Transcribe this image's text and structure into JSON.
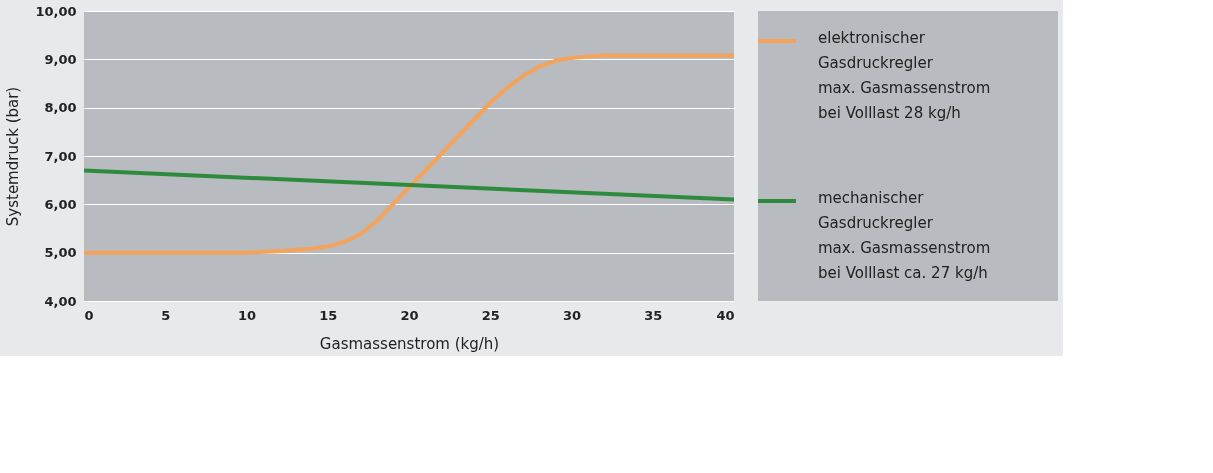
{
  "chart_data": {
    "type": "line",
    "xlabel": "Gasmassenstrom (kg/h)",
    "ylabel": "Systemdruck (bar)",
    "xlim": [
      0,
      40
    ],
    "xticks": [
      0,
      5,
      10,
      15,
      20,
      25,
      30,
      35,
      40
    ],
    "ylim": [
      4,
      10
    ],
    "yticks": [
      {
        "value": 4,
        "label": "4,00"
      },
      {
        "value": 5,
        "label": "5,00"
      },
      {
        "value": 6,
        "label": "6,00"
      },
      {
        "value": 7,
        "label": "7,00"
      },
      {
        "value": 8,
        "label": "8,00"
      },
      {
        "value": 9,
        "label": "9,00"
      },
      {
        "value": 10,
        "label": "10,00"
      }
    ],
    "grid": "y",
    "legend": "right",
    "line_style": "solid",
    "marker": "none",
    "series": [
      {
        "name": "elektronischer\nGasdruckregler\nmax. Gasmassenstrom\nbei Volllast 28 kg/h",
        "color": "#f5a25a",
        "x": [
          0,
          5,
          10,
          12,
          14,
          15,
          16,
          17,
          18,
          19,
          20,
          21,
          22,
          23,
          24,
          25,
          26,
          27,
          28,
          29,
          30,
          31,
          32,
          33,
          35,
          40
        ],
        "values": [
          5.0,
          5.0,
          5.0,
          5.03,
          5.08,
          5.13,
          5.22,
          5.38,
          5.65,
          6.0,
          6.35,
          6.7,
          7.05,
          7.4,
          7.75,
          8.1,
          8.4,
          8.65,
          8.85,
          8.97,
          9.03,
          9.06,
          9.08,
          9.08,
          9.08,
          9.08
        ]
      },
      {
        "name": "mechanischer\nGasdruckregler\nmax. Gasmassenstrom\nbei Volllast ca. 27 kg/h",
        "color": "#2e8b3e",
        "x": [
          0,
          40
        ],
        "values": [
          6.7,
          6.1
        ]
      }
    ]
  }
}
